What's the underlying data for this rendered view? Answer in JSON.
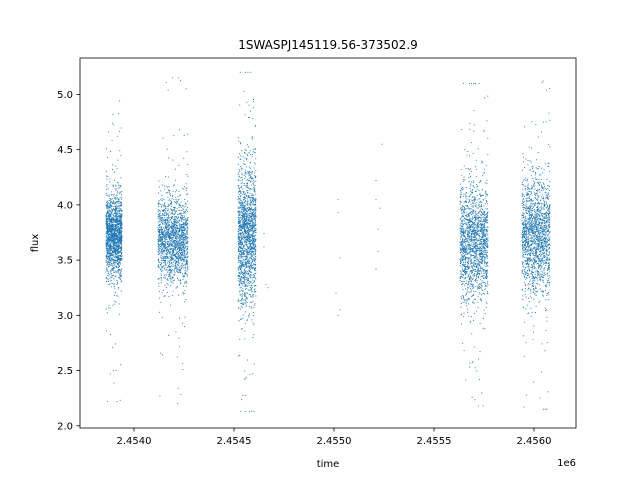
{
  "chart_data": {
    "type": "scatter",
    "title": "1SWASPJ145119.56-373502.9",
    "xlabel": "time",
    "ylabel": "flux",
    "x_offset_label": "1e6",
    "xlim": [
      2.45373,
      2.45621
    ],
    "ylim": [
      1.98,
      5.33
    ],
    "x_ticks": [
      2.454,
      2.4545,
      2.455,
      2.4555,
      2.456
    ],
    "x_tick_labels": [
      "2.4540",
      "2.4545",
      "2.4550",
      "2.4555",
      "2.4560"
    ],
    "y_ticks": [
      2.0,
      2.5,
      3.0,
      3.5,
      4.0,
      4.5,
      5.0
    ],
    "y_tick_labels": [
      "2.0",
      "2.5",
      "3.0",
      "3.5",
      "4.0",
      "4.5",
      "5.0"
    ],
    "grid": false,
    "marker_color": "#1f77b4",
    "series": [
      {
        "clusters": [
          {
            "x_range": [
              2.45386,
              2.45394
            ],
            "y_center": 3.72,
            "y_spread": 0.18,
            "y_min": 2.22,
            "y_max": 5.2
          },
          {
            "x_range": [
              2.45412,
              2.45427
            ],
            "y_center": 3.68,
            "y_spread": 0.18,
            "y_min": 2.2,
            "y_max": 5.15
          },
          {
            "x_range": [
              2.45452,
              2.45461
            ],
            "y_center": 3.72,
            "y_spread": 0.3,
            "y_min": 2.13,
            "y_max": 5.2
          },
          {
            "x_range": [
              2.45563,
              2.45577
            ],
            "y_center": 3.65,
            "y_spread": 0.25,
            "y_min": 2.18,
            "y_max": 5.1
          },
          {
            "x_range": [
              2.45594,
              2.45608
            ],
            "y_center": 3.72,
            "y_spread": 0.25,
            "y_min": 2.15,
            "y_max": 5.15
          }
        ],
        "sparse_points": [
          [
            2.45465,
            3.74
          ],
          [
            2.45466,
            3.28
          ],
          [
            2.45465,
            3.62
          ],
          [
            2.45467,
            3.25
          ],
          [
            2.45502,
            4.05
          ],
          [
            2.45502,
            3.93
          ],
          [
            2.45503,
            3.52
          ],
          [
            2.45503,
            3.05
          ],
          [
            2.45502,
            3.0
          ],
          [
            2.45501,
            3.2
          ],
          [
            2.45521,
            4.22
          ],
          [
            2.45521,
            4.05
          ],
          [
            2.45522,
            3.58
          ],
          [
            2.45521,
            3.42
          ],
          [
            2.45522,
            3.78
          ],
          [
            2.45524,
            4.55
          ],
          [
            2.45523,
            3.97
          ]
        ]
      }
    ]
  }
}
